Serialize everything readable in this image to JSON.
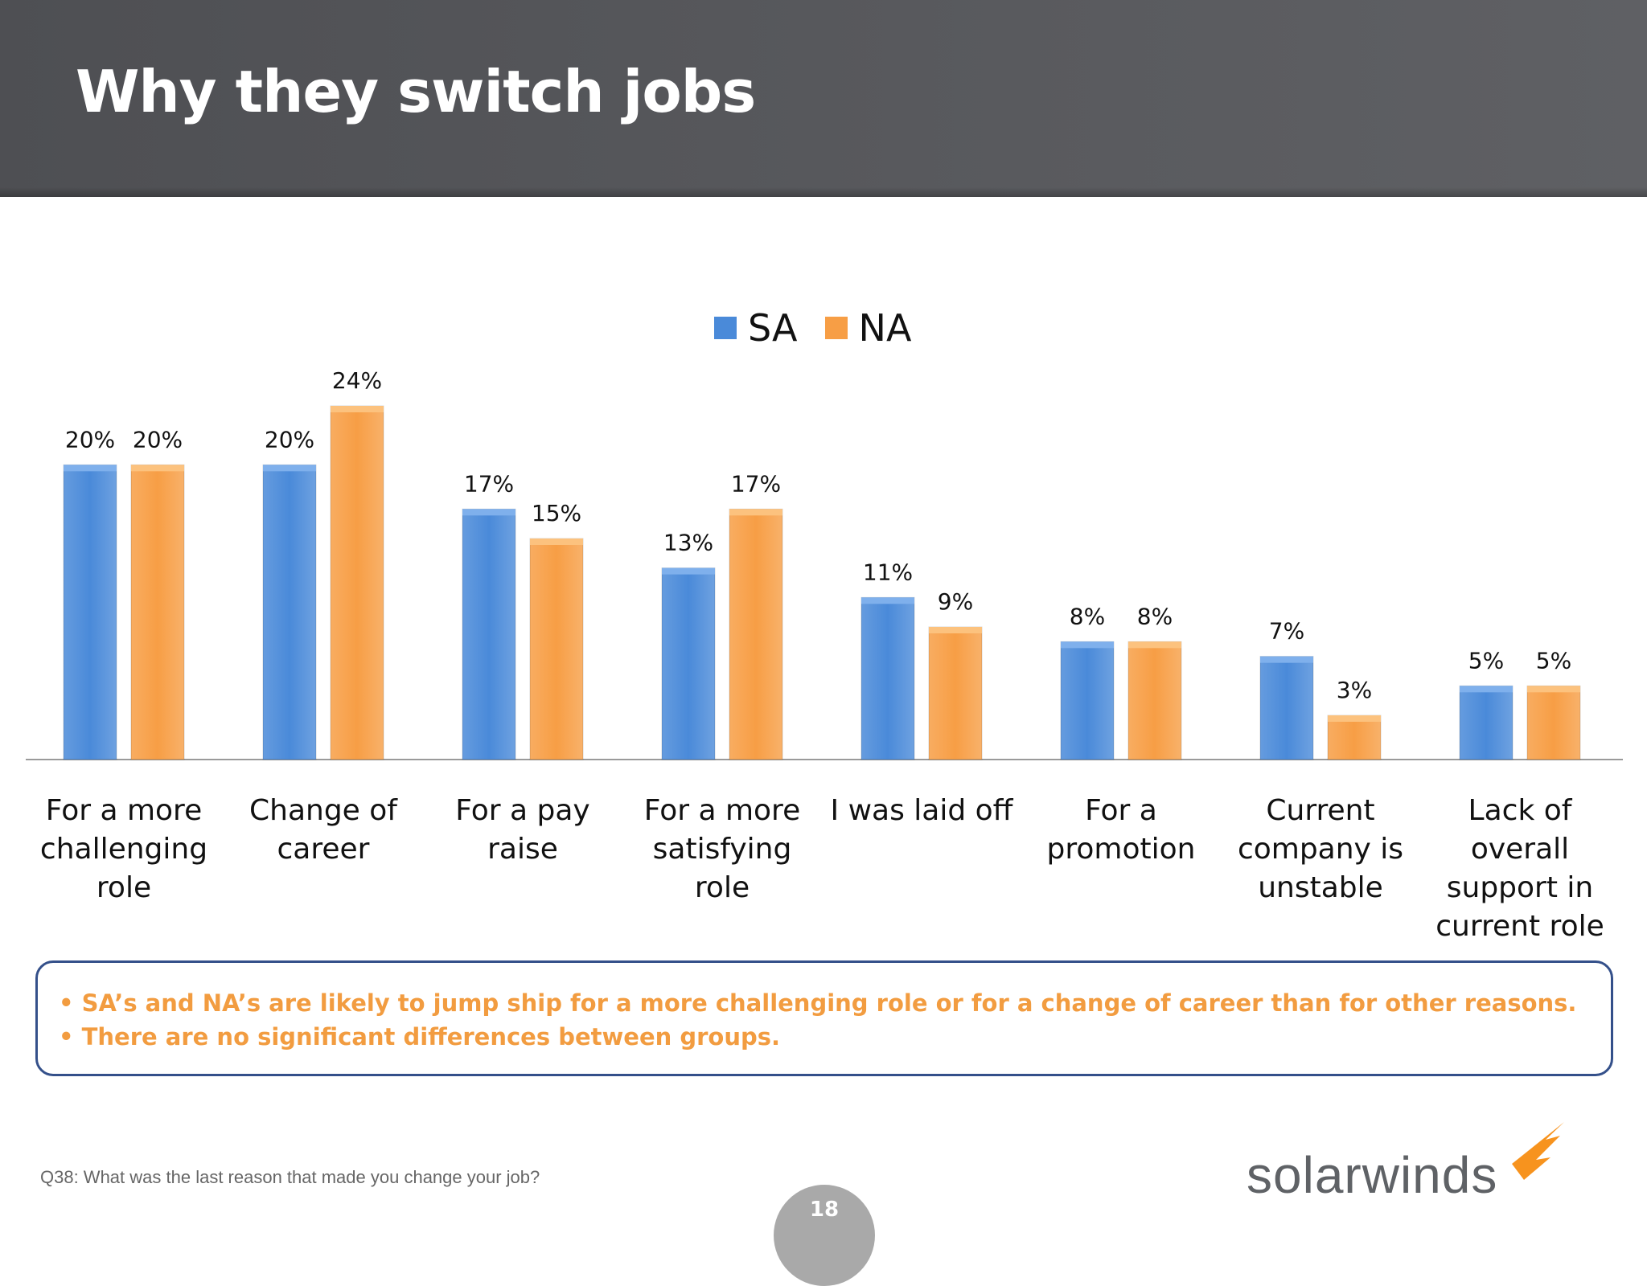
{
  "title": "Why they switch jobs",
  "colors": {
    "sa": "#4a8ad9",
    "na": "#f79e45",
    "header": "#55565a",
    "note_border": "#34508a",
    "note_text": "#f29c40"
  },
  "chart_data": {
    "type": "bar",
    "categories": [
      "For a more challenging role",
      "Change of career",
      "For a pay raise",
      "For a more satisfying role",
      "I was laid off",
      "For a promotion",
      "Current company is unstable",
      "Lack of overall support in current role"
    ],
    "series": [
      {
        "name": "SA",
        "values": [
          20,
          20,
          17,
          13,
          11,
          8,
          7,
          5
        ],
        "labels": [
          "20%",
          "20%",
          "17%",
          "13%",
          "11%",
          "8%",
          "7%",
          "5%"
        ]
      },
      {
        "name": "NA",
        "values": [
          20,
          24,
          15,
          17,
          9,
          8,
          3,
          5
        ],
        "labels": [
          "20%",
          "24%",
          "15%",
          "17%",
          "9%",
          "8%",
          "3%",
          "5%"
        ]
      }
    ],
    "ylim": [
      0,
      24
    ],
    "legend": "top-center",
    "grid": false
  },
  "category_lines": [
    [
      "For a more",
      "challenging",
      "role"
    ],
    [
      "Change of",
      "career"
    ],
    [
      "For a pay raise"
    ],
    [
      "For a more",
      "satisfying role"
    ],
    [
      "I was laid off"
    ],
    [
      "For a",
      "promotion"
    ],
    [
      "Current",
      "company is",
      "unstable"
    ],
    [
      "Lack of overall",
      "support in",
      "current role"
    ]
  ],
  "notes": [
    "• SA’s and NA’s are likely to jump ship for a more challenging  role or for a change of career than for other reasons.",
    "• There are no significant differences between groups."
  ],
  "footnote": "Q38: What was the last reason that made you change your job?",
  "logo_text": "solarwinds",
  "page_number": "18"
}
